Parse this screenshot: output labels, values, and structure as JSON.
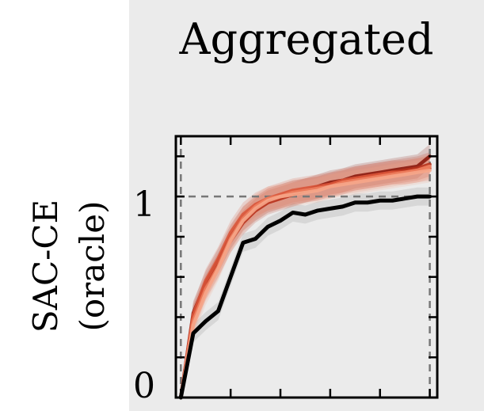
{
  "chart_data": {
    "type": "line",
    "title": "Aggregated",
    "ylabel_lines": [
      "SAC-CE",
      "(oracle)"
    ],
    "xlabel": "",
    "ylim": [
      0,
      1.3
    ],
    "xlim": [
      -0.02,
      1.03
    ],
    "yticks_labeled": [
      0,
      1
    ],
    "reference_lines_y": [
      0,
      1
    ],
    "reference_lines_x": [
      0,
      1
    ],
    "grid": false,
    "legend": "none",
    "x": [
      0,
      0.05,
      0.1,
      0.15,
      0.2,
      0.25,
      0.3,
      0.35,
      0.4,
      0.45,
      0.5,
      0.55,
      0.6,
      0.65,
      0.7,
      0.75,
      0.8,
      0.85,
      0.9,
      0.95,
      1.0
    ],
    "series": [
      {
        "color": "#000000",
        "style": "baseline",
        "values": [
          0,
          0.32,
          0.38,
          0.43,
          0.6,
          0.77,
          0.79,
          0.85,
          0.88,
          0.92,
          0.91,
          0.93,
          0.94,
          0.95,
          0.97,
          0.97,
          0.98,
          0.98,
          0.99,
          1.0,
          1.0
        ]
      },
      {
        "color": "#8b1a0e",
        "style": "variant",
        "values": [
          0,
          0.42,
          0.57,
          0.68,
          0.8,
          0.89,
          0.94,
          0.98,
          1.0,
          1.02,
          1.03,
          1.05,
          1.07,
          1.08,
          1.1,
          1.11,
          1.12,
          1.13,
          1.14,
          1.15,
          1.2
        ]
      },
      {
        "color": "#b8321c",
        "style": "variant",
        "values": [
          0,
          0.4,
          0.55,
          0.66,
          0.78,
          0.87,
          0.93,
          0.97,
          0.99,
          1.01,
          1.03,
          1.04,
          1.06,
          1.07,
          1.09,
          1.1,
          1.11,
          1.12,
          1.13,
          1.14,
          1.16
        ]
      },
      {
        "color": "#d9553a",
        "style": "variant",
        "values": [
          0,
          0.41,
          0.58,
          0.69,
          0.82,
          0.91,
          0.96,
          0.99,
          1.01,
          1.03,
          1.04,
          1.05,
          1.06,
          1.08,
          1.09,
          1.1,
          1.11,
          1.12,
          1.12,
          1.13,
          1.14
        ]
      },
      {
        "color": "#ee7f5f",
        "style": "variant",
        "values": [
          0,
          0.38,
          0.54,
          0.65,
          0.79,
          0.89,
          0.95,
          0.99,
          1.0,
          1.02,
          1.03,
          1.04,
          1.05,
          1.07,
          1.08,
          1.09,
          1.1,
          1.11,
          1.12,
          1.13,
          1.15
        ]
      },
      {
        "color": "#f6a689",
        "style": "variant",
        "values": [
          0,
          0.36,
          0.52,
          0.64,
          0.78,
          0.88,
          0.94,
          0.98,
          1.0,
          1.01,
          1.02,
          1.03,
          1.05,
          1.06,
          1.07,
          1.08,
          1.09,
          1.1,
          1.11,
          1.12,
          1.13
        ]
      }
    ]
  }
}
